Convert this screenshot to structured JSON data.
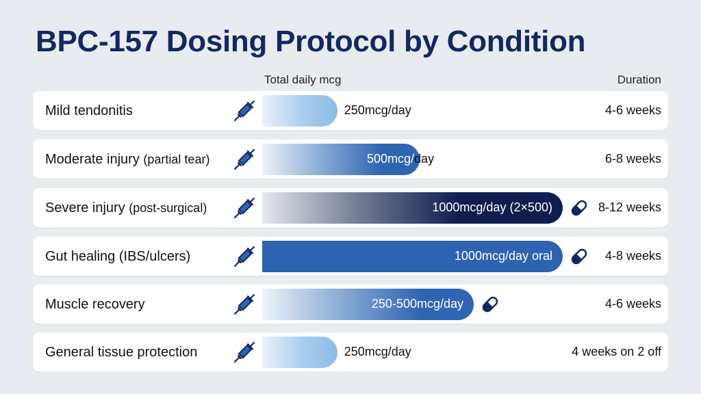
{
  "chart_data": {
    "type": "bar",
    "title": "BPC-157 Dosing Protocol by Condition",
    "value_header": "Total daily mcg",
    "duration_header": "Duration",
    "rows": [
      {
        "condition": "Mild tendonitis",
        "condition_sub": "",
        "value": 250,
        "label": "250mcg/day",
        "duration": "4-6 weeks",
        "oral": false,
        "style": "light"
      },
      {
        "condition": "Moderate injury",
        "condition_sub": "(partial tear)",
        "value": 500,
        "label": "500mcg/day",
        "duration": "6-8 weeks",
        "oral": false,
        "style": "medium"
      },
      {
        "condition": "Severe injury",
        "condition_sub": "(post-surgical)",
        "value": 1000,
        "label": "1000mcg/day (2×500)",
        "duration": "8-12 weeks",
        "oral": true,
        "style": "dark"
      },
      {
        "condition": "Gut healing (IBS/ulcers)",
        "condition_sub": "",
        "value": 1000,
        "label": "1000mcg/day oral",
        "duration": "4-8 weeks",
        "oral": true,
        "style": "solid"
      },
      {
        "condition": "Muscle recovery",
        "condition_sub": "",
        "value": [
          250,
          500
        ],
        "label": "250-500mcg/day",
        "duration": "4-6 weeks",
        "oral": true,
        "style": "medium"
      },
      {
        "condition": "General tissue protection",
        "condition_sub": "",
        "value": 250,
        "label": "250mcg/day",
        "duration": "4 weeks on 2 off",
        "oral": false,
        "style": "light"
      }
    ],
    "icons": {
      "injection": "syringe-icon",
      "oral": "pill-icon"
    },
    "colors": {
      "light": "#8bbce7",
      "medium": "#2f65b2",
      "dark": "#0f1e4e",
      "solid": "#2d63b0",
      "title": "#13285e"
    }
  }
}
